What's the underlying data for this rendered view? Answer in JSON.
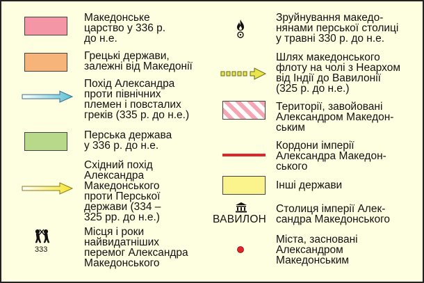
{
  "colors": {
    "background": "#fefee0",
    "macedonian_kingdom": "#f596a6",
    "greek_states": "#f7b47a",
    "persian_state": "#b8d98a",
    "other_states": "#fbf48c",
    "northern_campaign_arrow": "#6cc6d8",
    "eastern_campaign_arrow": "#f5ea3a",
    "fleet_route": "#e8e64a",
    "conquered_stripe": "#f4a7b3",
    "empire_border": "#e0242a",
    "city_dot": "#e0242a"
  },
  "legend": {
    "left": [
      {
        "symbol": "swatch-pink",
        "label": "Македонське\nцарство у 336 р.\nдо н.е."
      },
      {
        "symbol": "swatch-orange",
        "label": "Грецькі держави,\nзалежні від Македонії"
      },
      {
        "symbol": "arrow-blue",
        "label": "Похід Александра\nпроти північних\nплемен і повсталих\nгреків (335 р. до н.е.)"
      },
      {
        "symbol": "swatch-green",
        "label": "Перська держава\nу 336 р. до н.е."
      },
      {
        "symbol": "arrow-yellow",
        "label": "Східний похід\nАлександра\nМакедонського\nпроти Перської\nдержави (334 –\n325 рр. до н.е.)"
      },
      {
        "symbol": "battle-icon",
        "year": "333",
        "label": "Місця і роки\nнайвидатніших\nперемог Александра\nМакедонського"
      }
    ],
    "right": [
      {
        "symbol": "fire-icon",
        "label": "Зруйнування македо-\nнянами перської столиці\nу травні 330 р. до н.е."
      },
      {
        "symbol": "fleet-arrow",
        "label": "Шлях македонського\nфлоту на чолі з Неархом\nвід Індії до Вавилонії\n(325 р. до н.е.)"
      },
      {
        "symbol": "striped-swatch",
        "label": "Території, завойовані\nАлександром Македон-\nським"
      },
      {
        "symbol": "border-line",
        "label": "Кордони імперії\nАлександра Македон-\nського"
      },
      {
        "symbol": "swatch-yellow",
        "label": "Інші держави"
      },
      {
        "symbol": "capital-icon",
        "city": "ВАВИЛОН",
        "label": "Столиця імперії Алек-\nсандра Македонського"
      },
      {
        "symbol": "city-dot",
        "label": "Міста, засновані\nАлександром\nМакедонським"
      }
    ]
  }
}
